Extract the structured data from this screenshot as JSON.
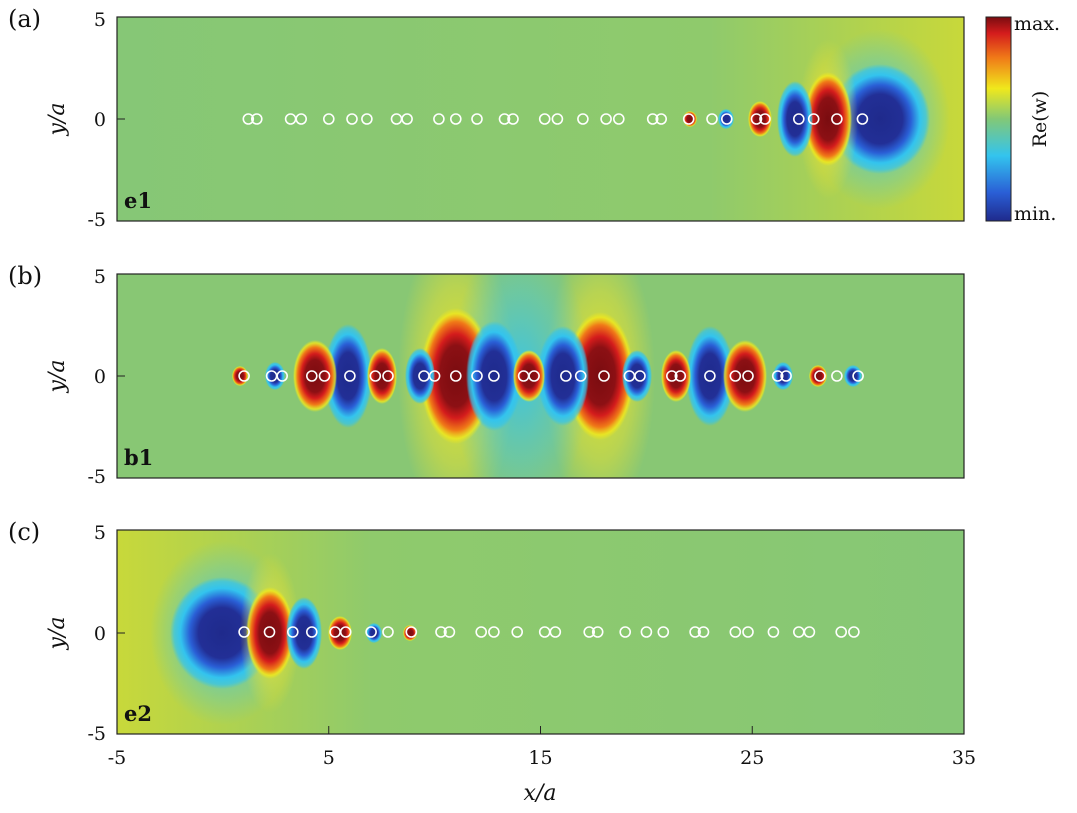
{
  "chart_data": [
    {
      "type": "heatmap",
      "panel_label": "(a)",
      "mode_label": "e1",
      "xlabel": "",
      "ylabel": "y/a",
      "xlim": [
        -5,
        35
      ],
      "ylim": [
        -5,
        5
      ],
      "yticks": [
        "5",
        "0",
        "-5"
      ],
      "field": "Re(w)",
      "scatterers_x": [
        1.2,
        1.6,
        3.2,
        3.7,
        5.0,
        6.1,
        6.8,
        8.2,
        8.7,
        10.2,
        11.0,
        12.0,
        13.3,
        13.7,
        15.2,
        15.8,
        17.0,
        18.1,
        18.7,
        20.3,
        20.7,
        22.0,
        23.1,
        23.8,
        25.2,
        25.6,
        27.2,
        27.9,
        29.0,
        30.2
      ],
      "scatterers_y": 0
    },
    {
      "type": "heatmap",
      "panel_label": "(b)",
      "mode_label": "b1",
      "xlabel": "",
      "ylabel": "y/a",
      "xlim": [
        -5,
        35
      ],
      "ylim": [
        -5,
        5
      ],
      "yticks": [
        "5",
        "0",
        "-5"
      ],
      "field": "Re(w)",
      "scatterers_x": [
        1.0,
        2.3,
        2.8,
        4.2,
        4.8,
        6.0,
        7.2,
        7.8,
        9.5,
        10.0,
        11.0,
        12.0,
        12.8,
        14.2,
        14.7,
        16.2,
        16.9,
        18.0,
        19.2,
        19.7,
        21.2,
        21.6,
        23.0,
        24.2,
        24.8,
        26.2,
        26.6,
        28.2,
        29.0,
        30.0
      ],
      "scatterers_y": 0
    },
    {
      "type": "heatmap",
      "panel_label": "(c)",
      "mode_label": "e2",
      "xlabel": "x/a",
      "ylabel": "y/a",
      "xlim": [
        -5,
        35
      ],
      "ylim": [
        -5,
        5
      ],
      "xticks": [
        "-5",
        "5",
        "15",
        "25",
        "35"
      ],
      "yticks": [
        "5",
        "0",
        "-5"
      ],
      "field": "Re(w)",
      "scatterers_x": [
        1.0,
        2.2,
        3.3,
        4.2,
        5.3,
        5.8,
        7.0,
        7.8,
        8.9,
        10.3,
        10.7,
        12.2,
        12.8,
        13.9,
        15.2,
        15.7,
        17.3,
        17.7,
        19.0,
        20.0,
        20.8,
        22.3,
        22.7,
        24.2,
        24.8,
        26.0,
        27.2,
        27.7,
        29.2,
        29.8
      ],
      "scatterers_y": 0
    }
  ],
  "colorbar": {
    "label": "Re(w)",
    "max_label": "max.",
    "min_label": "min.",
    "colormap": [
      "#1f2a8c",
      "#2a5fd6",
      "#33c4ee",
      "#82c877",
      "#f0e81c",
      "#f07a18",
      "#d41c1c",
      "#7a0c10"
    ]
  },
  "background_color": "#8ac872"
}
